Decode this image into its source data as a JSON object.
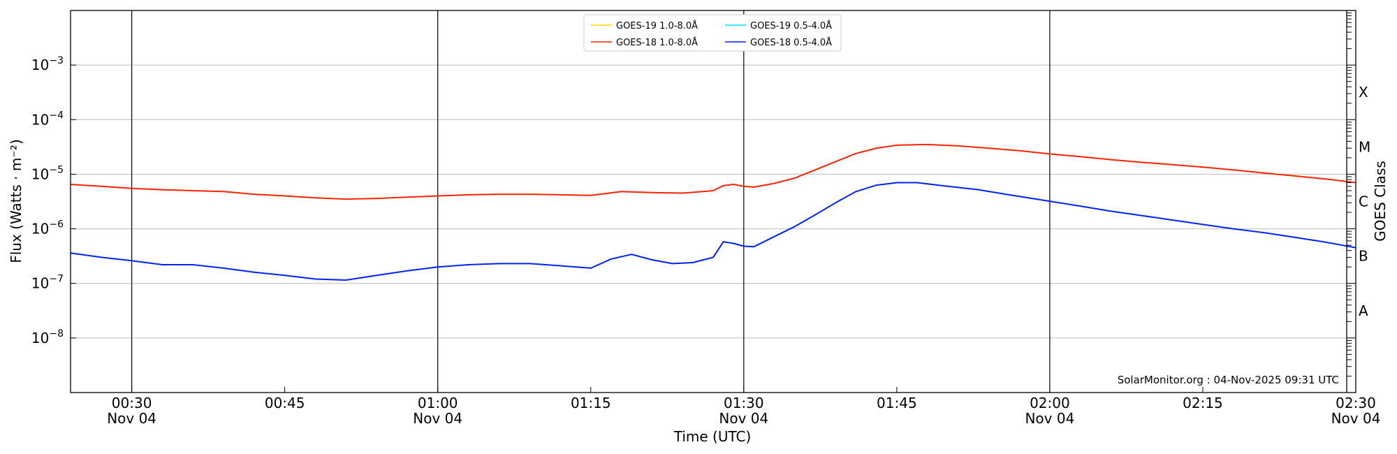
{
  "chart_data": {
    "type": "line",
    "title": "",
    "xlabel": "Time (UTC)",
    "ylabel": "Flux (Watts · m⁻²)",
    "ylabel_right": "GOES Class",
    "yscale": "log",
    "ylim": [
      1e-09,
      0.01
    ],
    "xlim": [
      "00:24",
      "02:30"
    ],
    "y_ticks": [
      {
        "exp": -8,
        "base": "10",
        "sup": "−8"
      },
      {
        "exp": -7,
        "base": "10",
        "sup": "−7"
      },
      {
        "exp": -6,
        "base": "10",
        "sup": "−6"
      },
      {
        "exp": -5,
        "base": "10",
        "sup": "−5"
      },
      {
        "exp": -4,
        "base": "10",
        "sup": "−4"
      },
      {
        "exp": -3,
        "base": "10",
        "sup": "−3"
      }
    ],
    "x_ticks": [
      {
        "time": "00:30",
        "label": "00:30",
        "date": "Nov 04"
      },
      {
        "time": "00:45",
        "label": "00:45",
        "date": ""
      },
      {
        "time": "01:00",
        "label": "01:00",
        "date": "Nov 04"
      },
      {
        "time": "01:15",
        "label": "01:15",
        "date": ""
      },
      {
        "time": "01:30",
        "label": "01:30",
        "date": "Nov 04"
      },
      {
        "time": "01:45",
        "label": "01:45",
        "date": ""
      },
      {
        "time": "02:00",
        "label": "02:00",
        "date": "Nov 04"
      },
      {
        "time": "02:15",
        "label": "02:15",
        "date": ""
      },
      {
        "time": "02:30",
        "label": "02:30",
        "date": "Nov 04"
      }
    ],
    "vertical_lines": [
      "00:30",
      "01:00",
      "01:30",
      "02:00"
    ],
    "goes_classes": [
      {
        "label": "A",
        "exp": -7.5
      },
      {
        "label": "B",
        "exp": -6.5
      },
      {
        "label": "C",
        "exp": -5.5
      },
      {
        "label": "M",
        "exp": -4.5
      },
      {
        "label": "X",
        "exp": -3.5
      }
    ],
    "grid": "horizontal",
    "legend_position": "top-center",
    "series": [
      {
        "name": "GOES-19 1.0-8.0Å",
        "color": "#ffd700",
        "times": [],
        "values": []
      },
      {
        "name": "GOES-18 1.0-8.0Å",
        "color": "#ff2400",
        "times": [
          "00:24",
          "00:27",
          "00:30",
          "00:33",
          "00:36",
          "00:39",
          "00:42",
          "00:45",
          "00:48",
          "00:51",
          "00:54",
          "00:57",
          "01:00",
          "01:03",
          "01:06",
          "01:09",
          "01:12",
          "01:15",
          "01:18",
          "01:21",
          "01:24",
          "01:27",
          "01:28",
          "01:29",
          "01:30",
          "01:31",
          "01:33",
          "01:35",
          "01:37",
          "01:39",
          "01:41",
          "01:43",
          "01:45",
          "01:48",
          "01:51",
          "01:54",
          "01:57",
          "02:00",
          "02:03",
          "02:06",
          "02:09",
          "02:12",
          "02:15",
          "02:18",
          "02:21",
          "02:24",
          "02:27",
          "02:30"
        ],
        "values": [
          6.5e-06,
          6e-06,
          5.5e-06,
          5.2e-06,
          5e-06,
          4.8e-06,
          4.3e-06,
          4e-06,
          3.7e-06,
          3.5e-06,
          3.6e-06,
          3.8e-06,
          4e-06,
          4.2e-06,
          4.3e-06,
          4.3e-06,
          4.2e-06,
          4.1e-06,
          4.8e-06,
          4.6e-06,
          4.5e-06,
          5e-06,
          6.2e-06,
          6.5e-06,
          6e-06,
          5.8e-06,
          6.8e-06,
          8.5e-06,
          1.2e-05,
          1.7e-05,
          2.4e-05,
          3e-05,
          3.4e-05,
          3.5e-05,
          3.3e-05,
          3e-05,
          2.7e-05,
          2.35e-05,
          2.1e-05,
          1.85e-05,
          1.65e-05,
          1.5e-05,
          1.35e-05,
          1.2e-05,
          1.05e-05,
          9.3e-06,
          8.2e-06,
          7e-06
        ]
      },
      {
        "name": "GOES-19 0.5-4.0Å",
        "color": "#00e5ee",
        "times": [],
        "values": []
      },
      {
        "name": "GOES-18 0.5-4.0Å",
        "color": "#0022ff",
        "times": [
          "00:24",
          "00:27",
          "00:30",
          "00:33",
          "00:36",
          "00:39",
          "00:42",
          "00:45",
          "00:48",
          "00:51",
          "00:54",
          "00:57",
          "01:00",
          "01:03",
          "01:06",
          "01:09",
          "01:12",
          "01:15",
          "01:17",
          "01:19",
          "01:21",
          "01:23",
          "01:25",
          "01:27",
          "01:28",
          "01:29",
          "01:30",
          "01:31",
          "01:33",
          "01:35",
          "01:37",
          "01:39",
          "01:41",
          "01:43",
          "01:45",
          "01:47",
          "01:50",
          "01:53",
          "01:56",
          "02:00",
          "02:03",
          "02:06",
          "02:09",
          "02:12",
          "02:15",
          "02:18",
          "02:21",
          "02:24",
          "02:27",
          "02:30"
        ],
        "values": [
          3.6e-07,
          3e-07,
          2.6e-07,
          2.2e-07,
          2.2e-07,
          1.9e-07,
          1.6e-07,
          1.4e-07,
          1.2e-07,
          1.15e-07,
          1.4e-07,
          1.7e-07,
          2e-07,
          2.2e-07,
          2.3e-07,
          2.3e-07,
          2.1e-07,
          1.9e-07,
          2.8e-07,
          3.4e-07,
          2.7e-07,
          2.3e-07,
          2.4e-07,
          3e-07,
          5.8e-07,
          5.4e-07,
          4.8e-07,
          4.7e-07,
          7.2e-07,
          1.1e-06,
          1.8e-06,
          3e-06,
          4.8e-06,
          6.3e-06,
          7e-06,
          7e-06,
          6e-06,
          5.2e-06,
          4.2e-06,
          3.2e-06,
          2.6e-06,
          2.1e-06,
          1.75e-06,
          1.45e-06,
          1.2e-06,
          1e-06,
          8.5e-07,
          7e-07,
          5.7e-07,
          4.5e-07
        ]
      }
    ],
    "annotation": "SolarMonitor.org : 04-Nov-2025 09:31 UTC"
  }
}
